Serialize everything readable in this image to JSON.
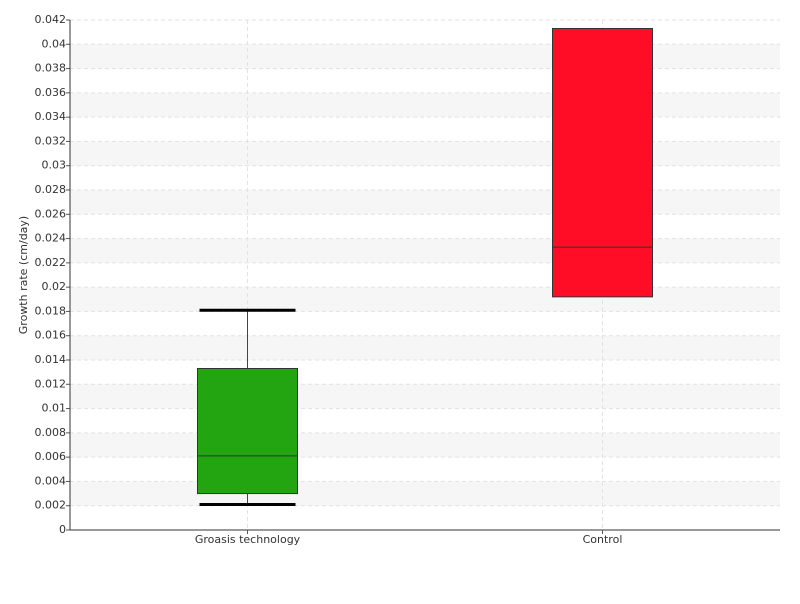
{
  "chart_data": {
    "type": "box",
    "y_label": "Growth rate (cm/day)",
    "categories": [
      "Groasis technology",
      "Control"
    ],
    "boxes": [
      {
        "whisker_low": 0.0021,
        "q1": 0.003,
        "median": 0.0061,
        "q3": 0.0133,
        "whisker_high": 0.0181,
        "color": "#22a511"
      },
      {
        "whisker_low": 0.0192,
        "q1": 0.0192,
        "median": 0.0233,
        "q3": 0.0413,
        "whisker_high": 0.0413,
        "color": "#ff0d27"
      }
    ],
    "ylim": [
      0,
      0.042
    ],
    "yticks": [
      0,
      0.002,
      0.004,
      0.006,
      0.008,
      0.01,
      0.012,
      0.014,
      0.016,
      0.018,
      0.02,
      0.022,
      0.024,
      0.026,
      0.028,
      0.03,
      0.032,
      0.034,
      0.036,
      0.038,
      0.04,
      0.042
    ],
    "grid": true
  }
}
